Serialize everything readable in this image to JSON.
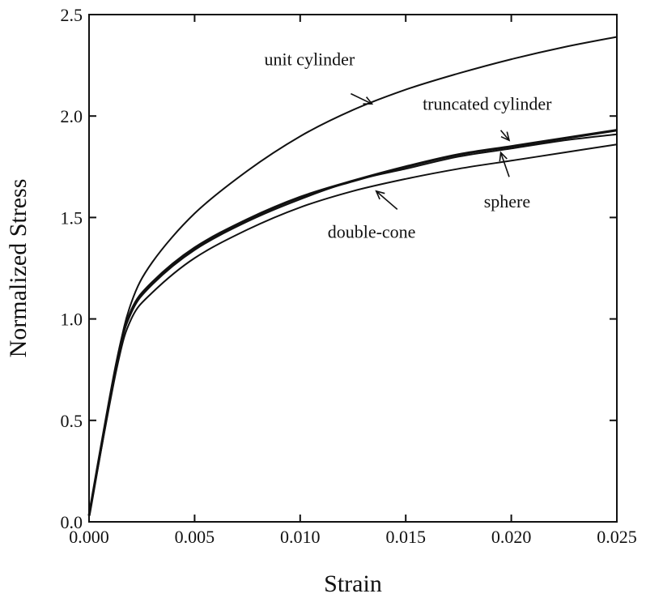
{
  "chart_data": {
    "type": "line",
    "title": "",
    "xlabel": "Strain",
    "ylabel": "Normalized Stress",
    "xlim": [
      0.0,
      0.025
    ],
    "ylim": [
      0.0,
      2.5
    ],
    "x_ticks": [
      0.0,
      0.005,
      0.01,
      0.015,
      0.02,
      0.025
    ],
    "x_tick_labels": [
      "0.000",
      "0.005",
      "0.010",
      "0.015",
      "0.020",
      "0.025"
    ],
    "y_ticks": [
      0.0,
      0.5,
      1.0,
      1.5,
      2.0,
      2.5
    ],
    "y_tick_labels": [
      "0.0",
      "0.5",
      "1.0",
      "1.5",
      "2.0",
      "2.5"
    ],
    "grid": false,
    "legend": "none",
    "line_color": "#111111",
    "series": [
      {
        "name": "unit cylinder",
        "x": [
          0.0,
          0.0013,
          0.002,
          0.003,
          0.005,
          0.0075,
          0.01,
          0.0125,
          0.015,
          0.0175,
          0.02,
          0.0225,
          0.025
        ],
        "y": [
          0.03,
          0.78,
          1.08,
          1.28,
          1.52,
          1.73,
          1.9,
          2.03,
          2.13,
          2.21,
          2.28,
          2.34,
          2.39
        ]
      },
      {
        "name": "truncated cylinder",
        "x": [
          0.0,
          0.0013,
          0.002,
          0.003,
          0.005,
          0.0075,
          0.01,
          0.0125,
          0.015,
          0.0175,
          0.02,
          0.0225,
          0.025
        ],
        "y": [
          0.03,
          0.78,
          1.04,
          1.18,
          1.35,
          1.49,
          1.6,
          1.68,
          1.75,
          1.81,
          1.85,
          1.89,
          1.93
        ]
      },
      {
        "name": "sphere",
        "x": [
          0.0,
          0.0013,
          0.002,
          0.003,
          0.005,
          0.0075,
          0.01,
          0.0125,
          0.015,
          0.0175,
          0.02,
          0.0225,
          0.025
        ],
        "y": [
          0.03,
          0.78,
          1.03,
          1.17,
          1.34,
          1.48,
          1.59,
          1.68,
          1.74,
          1.8,
          1.84,
          1.88,
          1.91
        ]
      },
      {
        "name": "double-cone",
        "x": [
          0.0,
          0.0013,
          0.002,
          0.003,
          0.005,
          0.0075,
          0.01,
          0.0125,
          0.015,
          0.0175,
          0.02,
          0.0225,
          0.025
        ],
        "y": [
          0.03,
          0.75,
          1.0,
          1.13,
          1.3,
          1.44,
          1.55,
          1.63,
          1.69,
          1.74,
          1.78,
          1.82,
          1.86
        ]
      }
    ],
    "annotations": [
      {
        "text": "unit cylinder",
        "x": 0.0083,
        "y": 2.25,
        "arrow_from": [
          0.0124,
          2.11
        ],
        "arrow_to": [
          0.0134,
          2.06
        ]
      },
      {
        "text": "truncated cylinder",
        "x": 0.0158,
        "y": 2.03,
        "arrow_from": [
          0.0195,
          1.93
        ],
        "arrow_to": [
          0.0199,
          1.88
        ]
      },
      {
        "text": "sphere",
        "x": 0.0187,
        "y": 1.55,
        "arrow_from": [
          0.0199,
          1.7
        ],
        "arrow_to": [
          0.0195,
          1.82
        ]
      },
      {
        "text": "double-cone",
        "x": 0.0113,
        "y": 1.4,
        "arrow_from": [
          0.0146,
          1.54
        ],
        "arrow_to": [
          0.0136,
          1.63
        ]
      }
    ]
  }
}
